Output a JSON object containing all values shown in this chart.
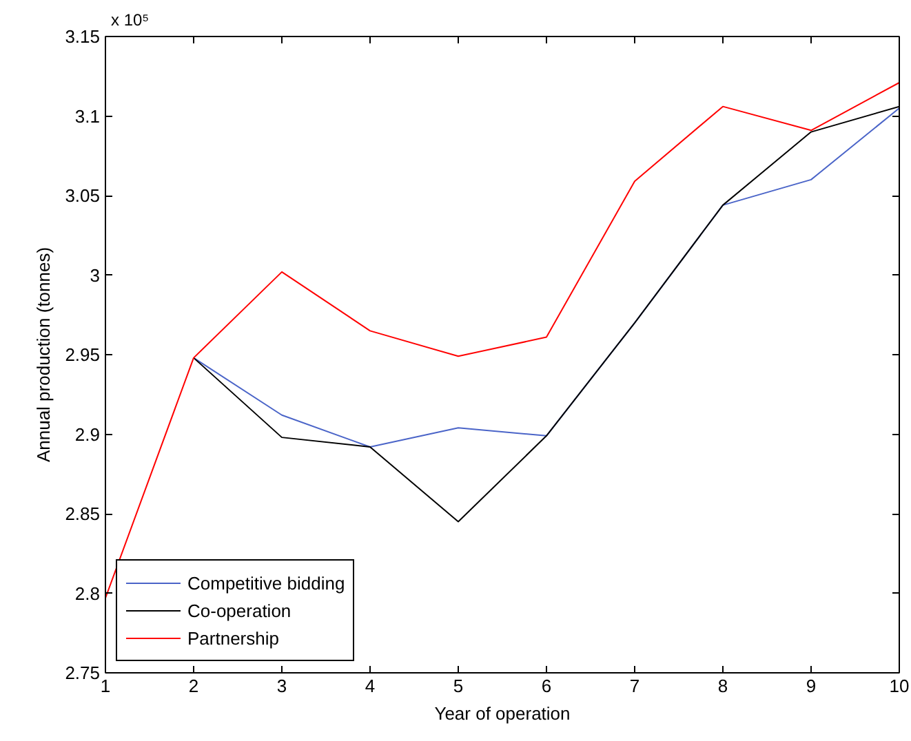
{
  "chart_data": {
    "type": "line",
    "xlabel": "Year of operation",
    "ylabel": "Annual production (tonnes)",
    "annotations": [
      "x 10⁵"
    ],
    "x": [
      1,
      2,
      3,
      4,
      5,
      6,
      7,
      8,
      9,
      10
    ],
    "series": [
      {
        "name": "Competitive bidding",
        "color": "#4a64c8",
        "values": [
          null,
          2.948,
          2.912,
          2.892,
          2.904,
          2.899,
          2.97,
          3.044,
          3.06,
          3.105
        ]
      },
      {
        "name": "Co-operation",
        "color": "#000000",
        "values": [
          null,
          2.948,
          2.898,
          2.892,
          2.845,
          2.899,
          2.97,
          3.044,
          3.09,
          3.106
        ]
      },
      {
        "name": "Partnership",
        "color": "#ff0000",
        "values": [
          2.797,
          2.948,
          3.002,
          2.965,
          2.949,
          2.961,
          3.059,
          3.106,
          3.091,
          3.121
        ]
      }
    ],
    "xlim": [
      1,
      10
    ],
    "xticks": [
      1,
      2,
      3,
      4,
      5,
      6,
      7,
      8,
      9,
      10
    ],
    "ylim": [
      2.75,
      3.15
    ],
    "yticks": [
      2.75,
      2.8,
      2.85,
      2.9,
      2.95,
      3,
      3.05,
      3.1,
      3.15
    ],
    "legend": "bottom left",
    "grid": false,
    "line_style": "solid",
    "marker": "none"
  }
}
